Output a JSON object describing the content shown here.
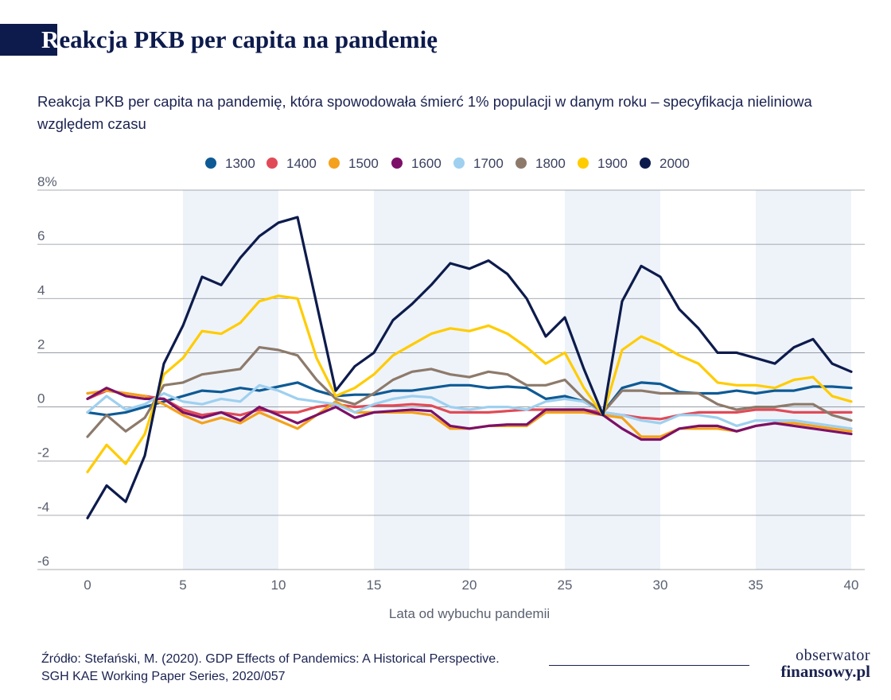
{
  "header": {
    "title_first": "R",
    "title_rest": "eakcja PKB per capita na pandemię",
    "subtitle": "Reakcja PKB per capita na pandemię, która spowodowała śmierć 1% populacji w danym roku – specyfikacja nieliniowa względem czasu"
  },
  "footer": {
    "source_line1": "Źródło: Stefański, M. (2020). GDP Effects of Pandemics: A Historical Perspective.",
    "source_line2": "SGH KAE Working Paper Series, 2020/057",
    "logo_line1": "obserwator",
    "logo_line2": "finansowy.pl"
  },
  "chart_data": {
    "type": "line",
    "xlabel": "Lata od wybuchu pandemii",
    "ylabel": "",
    "xlim": [
      0,
      40
    ],
    "ylim": [
      -6,
      8
    ],
    "xticks": [
      0,
      5,
      10,
      15,
      20,
      25,
      30,
      35,
      40
    ],
    "yticks": [
      {
        "value": 8,
        "label": "8%"
      },
      {
        "value": 6,
        "label": "6"
      },
      {
        "value": 4,
        "label": "4"
      },
      {
        "value": 2,
        "label": "2"
      },
      {
        "value": 0,
        "label": "0"
      },
      {
        "value": -2,
        "label": "-2"
      },
      {
        "value": -4,
        "label": "-4"
      },
      {
        "value": -6,
        "label": "-6"
      }
    ],
    "shaded_bands": [
      [
        5,
        10
      ],
      [
        15,
        20
      ],
      [
        25,
        30
      ],
      [
        35,
        40
      ]
    ],
    "legend_position": "top",
    "x": [
      0,
      1,
      2,
      3,
      4,
      5,
      6,
      7,
      8,
      9,
      10,
      11,
      12,
      13,
      14,
      15,
      16,
      17,
      18,
      19,
      20,
      21,
      22,
      23,
      24,
      25,
      26,
      27,
      28,
      29,
      30,
      31,
      32,
      33,
      34,
      35,
      36,
      37,
      38,
      39,
      40
    ],
    "series": [
      {
        "name": "1300",
        "color": "#0e5a95",
        "values": [
          -0.2,
          -0.3,
          -0.2,
          0,
          0.2,
          0.4,
          0.6,
          0.55,
          0.7,
          0.6,
          0.75,
          0.9,
          0.6,
          0.4,
          0.45,
          0.45,
          0.6,
          0.6,
          0.7,
          0.8,
          0.8,
          0.7,
          0.75,
          0.7,
          0.3,
          0.4,
          0.2,
          -0.2,
          0.7,
          0.9,
          0.85,
          0.55,
          0.5,
          0.5,
          0.6,
          0.5,
          0.6,
          0.6,
          0.75,
          0.75,
          0.7
        ]
      },
      {
        "name": "1400",
        "color": "#e04b57",
        "values": [
          0.3,
          0.6,
          0.5,
          0.4,
          0.3,
          -0.1,
          -0.3,
          -0.2,
          -0.3,
          -0.1,
          -0.2,
          -0.2,
          0,
          0.1,
          0,
          0.05,
          0.05,
          0.1,
          0.05,
          -0.2,
          -0.2,
          -0.2,
          -0.15,
          -0.1,
          -0.1,
          -0.1,
          -0.1,
          -0.2,
          -0.3,
          -0.4,
          -0.45,
          -0.3,
          -0.2,
          -0.2,
          -0.2,
          -0.1,
          -0.1,
          -0.2,
          -0.2,
          -0.2,
          -0.2
        ]
      },
      {
        "name": "1500",
        "color": "#f4a11c",
        "values": [
          0.5,
          0.6,
          0.5,
          0.4,
          0.1,
          -0.3,
          -0.6,
          -0.4,
          -0.6,
          -0.2,
          -0.5,
          -0.8,
          -0.3,
          0.2,
          -0.2,
          -0.2,
          -0.2,
          -0.2,
          -0.3,
          -0.8,
          -0.8,
          -0.7,
          -0.7,
          -0.7,
          -0.2,
          -0.2,
          -0.2,
          -0.3,
          -0.4,
          -1.1,
          -1.1,
          -0.8,
          -0.8,
          -0.8,
          -0.9,
          -0.7,
          -0.6,
          -0.6,
          -0.7,
          -0.8,
          -0.9
        ]
      },
      {
        "name": "1600",
        "color": "#7c1068",
        "values": [
          0.3,
          0.7,
          0.4,
          0.3,
          0.3,
          -0.2,
          -0.4,
          -0.2,
          -0.5,
          0,
          -0.3,
          -0.6,
          -0.3,
          0,
          -0.4,
          -0.2,
          -0.15,
          -0.1,
          -0.15,
          -0.7,
          -0.8,
          -0.7,
          -0.65,
          -0.65,
          -0.1,
          -0.1,
          -0.1,
          -0.3,
          -0.8,
          -1.2,
          -1.2,
          -0.8,
          -0.7,
          -0.7,
          -0.9,
          -0.7,
          -0.6,
          -0.7,
          -0.8,
          -0.9,
          -1.0
        ]
      },
      {
        "name": "1700",
        "color": "#9fd0ef",
        "values": [
          -0.2,
          0.4,
          -0.1,
          0.1,
          0.5,
          0.2,
          0.1,
          0.3,
          0.2,
          0.8,
          0.6,
          0.3,
          0.2,
          0.1,
          -0.2,
          0.1,
          0.3,
          0.4,
          0.35,
          0,
          -0.1,
          0,
          0,
          -0.1,
          0.2,
          0.3,
          0.2,
          -0.2,
          -0.3,
          -0.5,
          -0.6,
          -0.3,
          -0.3,
          -0.4,
          -0.7,
          -0.5,
          -0.5,
          -0.5,
          -0.6,
          -0.7,
          -0.8
        ]
      },
      {
        "name": "1800",
        "color": "#8d7a6b",
        "values": [
          -1.1,
          -0.3,
          -0.9,
          -0.4,
          0.8,
          0.9,
          1.2,
          1.3,
          1.4,
          2.2,
          2.1,
          1.9,
          1.0,
          0.3,
          0.1,
          0.5,
          1.0,
          1.3,
          1.4,
          1.2,
          1.1,
          1.3,
          1.2,
          0.8,
          0.8,
          1.0,
          0.3,
          -0.2,
          0.6,
          0.6,
          0.5,
          0.5,
          0.5,
          0.1,
          -0.1,
          0,
          0,
          0.1,
          0.1,
          -0.3,
          -0.5
        ]
      },
      {
        "name": "1900",
        "color": "#ffcc00",
        "values": [
          -2.4,
          -1.4,
          -2.1,
          -1.0,
          1.2,
          1.8,
          2.8,
          2.7,
          3.1,
          3.9,
          4.1,
          4.0,
          1.8,
          0.4,
          0.7,
          1.2,
          1.9,
          2.3,
          2.7,
          2.9,
          2.8,
          3.0,
          2.7,
          2.2,
          1.6,
          2.0,
          0.7,
          -0.3,
          2.1,
          2.6,
          2.3,
          1.9,
          1.6,
          0.9,
          0.8,
          0.8,
          0.7,
          1.0,
          1.1,
          0.4,
          0.2
        ]
      },
      {
        "name": "2000",
        "color": "#0d1b4c",
        "values": [
          -4.1,
          -2.9,
          -3.5,
          -1.8,
          1.6,
          3.0,
          4.8,
          4.5,
          5.5,
          6.3,
          6.8,
          7.0,
          3.8,
          0.6,
          1.5,
          2.0,
          3.2,
          3.8,
          4.5,
          5.3,
          5.1,
          5.4,
          4.9,
          4.0,
          2.6,
          3.3,
          1.4,
          -0.3,
          3.9,
          5.2,
          4.8,
          3.6,
          2.9,
          2.0,
          2.0,
          1.8,
          1.6,
          2.2,
          2.5,
          1.6,
          1.3
        ]
      }
    ]
  }
}
